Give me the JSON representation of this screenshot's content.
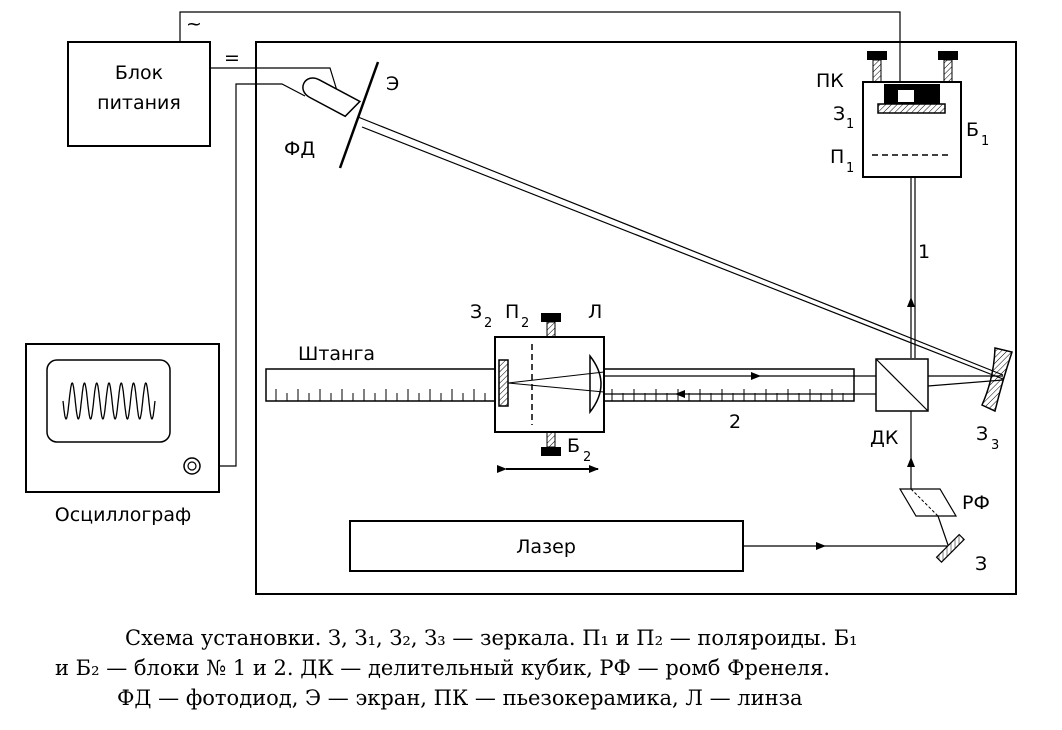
{
  "labels": {
    "power_supply_1": "Блок",
    "power_supply_2": "питания",
    "ac_symbol": "~",
    "dc_symbol": "=",
    "screen": "Э",
    "photodiode": "ФД",
    "piezo": "ПК",
    "mirror1": "З",
    "mirror1_sub": "1",
    "block1": "Б",
    "block1_sub": "1",
    "polarizer1": "П",
    "polarizer1_sub": "1",
    "beam1": "1",
    "mirror2": "З",
    "mirror2_sub": "2",
    "polarizer2": "П",
    "polarizer2_sub": "2",
    "lens": "Л",
    "rod": "Штанга",
    "beam2": "2",
    "block2": "Б",
    "block2_sub": "2",
    "beam_cube": "ДК",
    "mirror3": "З",
    "mirror3_sub": "3",
    "fresnel_rhomb": "РФ",
    "laser": "Лазер",
    "mirror": "З",
    "oscilloscope": "Осциллограф"
  },
  "caption": {
    "line1": "Схема установки. З, З₁, З₂, З₃ — зеркала. П₁ и П₂ — поляроиды. Б₁",
    "line2": "и Б₂ — блоки № 1 и 2. ДК — делительный кубик, РФ — ромб Френеля.",
    "line3": "ФД — фотодиод, Э — экран, ПК — пьезокерамика, Л — линза"
  }
}
